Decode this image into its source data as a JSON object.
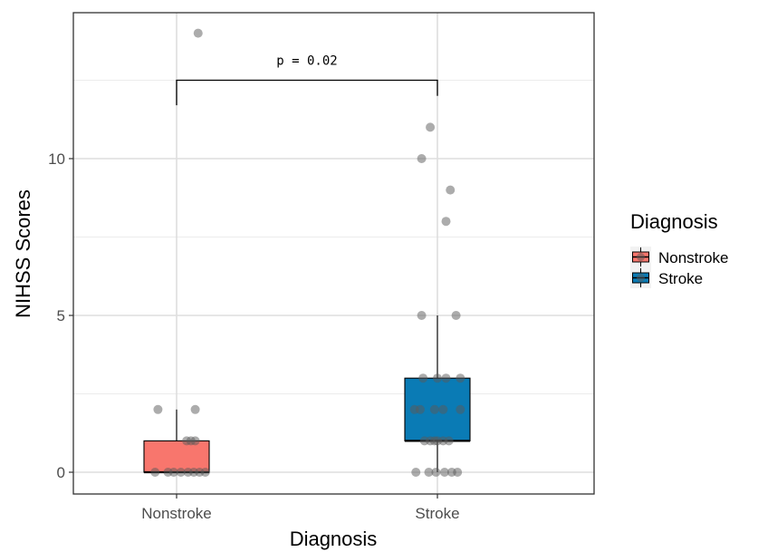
{
  "chart_data": {
    "type": "box",
    "xlabel": "Diagnosis",
    "ylabel": "NIHSS Scores",
    "categories": [
      "Nonstroke",
      "Stroke"
    ],
    "ylim": [
      -0.7,
      14.7
    ],
    "yticks": [
      0,
      5,
      10
    ],
    "grid": true,
    "legend": {
      "title": "Diagnosis",
      "position": "right",
      "entries": [
        {
          "label": "Nonstroke",
          "color": "#f8766d"
        },
        {
          "label": "Stroke",
          "color": "#0a7bb5"
        }
      ]
    },
    "boxes": [
      {
        "name": "Nonstroke",
        "color": "#f8766d",
        "min": 0,
        "q1": 0,
        "median": 0,
        "q3": 1,
        "max": 2,
        "outliers": [
          14
        ],
        "points": [
          [
            -0.13,
            2
          ],
          [
            0.13,
            2
          ],
          [
            0.07,
            1
          ],
          [
            0.13,
            1
          ],
          [
            0.1,
            1
          ],
          [
            -0.15,
            0
          ],
          [
            -0.06,
            0
          ],
          [
            -0.02,
            0
          ],
          [
            0.03,
            0
          ],
          [
            0.08,
            0
          ],
          [
            0.12,
            0
          ],
          [
            0.16,
            0
          ],
          [
            0.2,
            0
          ],
          [
            0.15,
            14
          ]
        ]
      },
      {
        "name": "Stroke",
        "color": "#0a7bb5",
        "min": 0,
        "q1": 1,
        "median": 1,
        "q3": 3,
        "max": 5,
        "outliers": [
          8,
          9,
          10,
          11
        ],
        "points": [
          [
            -0.05,
            11
          ],
          [
            -0.11,
            10
          ],
          [
            0.09,
            9
          ],
          [
            0.06,
            8
          ],
          [
            -0.11,
            5
          ],
          [
            0.13,
            5
          ],
          [
            -0.1,
            3
          ],
          [
            0.0,
            3
          ],
          [
            0.06,
            3
          ],
          [
            0.16,
            3
          ],
          [
            -0.16,
            2
          ],
          [
            -0.12,
            2
          ],
          [
            -0.02,
            2
          ],
          [
            0.04,
            2
          ],
          [
            0.16,
            2
          ],
          [
            -0.09,
            1
          ],
          [
            -0.05,
            1
          ],
          [
            -0.02,
            1
          ],
          [
            0.0,
            1
          ],
          [
            0.04,
            1
          ],
          [
            0.08,
            1
          ],
          [
            -0.15,
            0
          ],
          [
            -0.06,
            0
          ],
          [
            -0.01,
            0
          ],
          [
            0.05,
            0
          ],
          [
            0.1,
            0
          ],
          [
            0.14,
            0
          ]
        ]
      }
    ],
    "annotation": {
      "text": "p = 0.02",
      "bracket_y": 12.5,
      "left_end": 11.7,
      "right_end": 12.0
    }
  }
}
